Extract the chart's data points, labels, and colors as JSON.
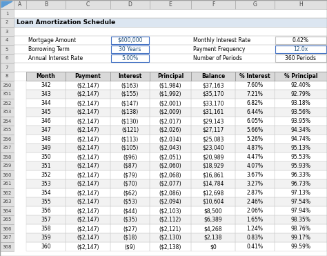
{
  "title": "Loan Amortization Schedule",
  "table_headers": [
    "Month",
    "Payment",
    "Interest",
    "Principal",
    "Balance",
    "% Interest",
    "% Principal"
  ],
  "table_data": [
    [
      342,
      "($2,147)",
      "($163)",
      "($1,984)",
      "$37,163",
      "7.60%",
      "92.40%"
    ],
    [
      343,
      "($2,147)",
      "($155)",
      "($1,992)",
      "$35,170",
      "7.21%",
      "92.79%"
    ],
    [
      344,
      "($2,147)",
      "($147)",
      "($2,001)",
      "$33,170",
      "6.82%",
      "93.18%"
    ],
    [
      345,
      "($2,147)",
      "($138)",
      "($2,009)",
      "$31,161",
      "6.44%",
      "93.56%"
    ],
    [
      346,
      "($2,147)",
      "($130)",
      "($2,017)",
      "$29,143",
      "6.05%",
      "93.95%"
    ],
    [
      347,
      "($2,147)",
      "($121)",
      "($2,026)",
      "$27,117",
      "5.66%",
      "94.34%"
    ],
    [
      348,
      "($2,147)",
      "($113)",
      "($2,034)",
      "$25,083",
      "5.26%",
      "94.74%"
    ],
    [
      349,
      "($2,147)",
      "($105)",
      "($2,043)",
      "$23,040",
      "4.87%",
      "95.13%"
    ],
    [
      350,
      "($2,147)",
      "($96)",
      "($2,051)",
      "$20,989",
      "4.47%",
      "95.53%"
    ],
    [
      351,
      "($2,147)",
      "($87)",
      "($2,060)",
      "$18,929",
      "4.07%",
      "95.93%"
    ],
    [
      352,
      "($2,147)",
      "($79)",
      "($2,068)",
      "$16,861",
      "3.67%",
      "96.33%"
    ],
    [
      353,
      "($2,147)",
      "($70)",
      "($2,077)",
      "$14,784",
      "3.27%",
      "96.73%"
    ],
    [
      354,
      "($2,147)",
      "($62)",
      "($2,086)",
      "$12,698",
      "2.87%",
      "97.13%"
    ],
    [
      355,
      "($2,147)",
      "($53)",
      "($2,094)",
      "$10,604",
      "2.46%",
      "97.54%"
    ],
    [
      356,
      "($2,147)",
      "($44)",
      "($2,103)",
      "$8,500",
      "2.06%",
      "97.94%"
    ],
    [
      357,
      "($2,147)",
      "($35)",
      "($2,112)",
      "$6,389",
      "1.65%",
      "98.35%"
    ],
    [
      358,
      "($2,147)",
      "($27)",
      "($2,121)",
      "$4,268",
      "1.24%",
      "98.76%"
    ],
    [
      359,
      "($2,147)",
      "($18)",
      "($2,130)",
      "$2,138",
      "0.83%",
      "99.17%"
    ],
    [
      360,
      "($2,147)",
      "($9)",
      "($2,138)",
      "$0",
      "0.41%",
      "99.59%"
    ]
  ],
  "excel_row_nums_data": [
    "350",
    "351",
    "352",
    "353",
    "354",
    "355",
    "356",
    "357",
    "358",
    "359",
    "360",
    "361",
    "362",
    "363",
    "364",
    "365",
    "366",
    "367",
    "368"
  ],
  "col_header_bg": "#e0e0e0",
  "row_num_bg": "#e0e0e0",
  "title_bg": "#dce6f1",
  "table_header_bg": "#d9d9d9",
  "white": "#ffffff",
  "alt_row": "#f2f2f2",
  "blue_text": "#1f4e79",
  "blue_border": "#4472c4",
  "cell_border": "#c0c0c0",
  "dark_border": "#999999",
  "text_gray": "#555555",
  "bg": "#e8e8e8"
}
